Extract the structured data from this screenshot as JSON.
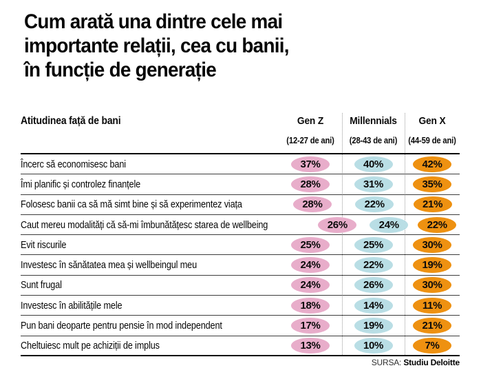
{
  "title": {
    "lines": [
      "Cum arată una dintre cele mai",
      "importante relații, cea cu banii,",
      "în funcție de generație"
    ]
  },
  "table": {
    "row_header": "Atitudinea față de bani",
    "columns": [
      {
        "label": "Gen Z",
        "sublabel": "(12-27 de ani)",
        "color": "#e8adca"
      },
      {
        "label": "Millennials",
        "sublabel": "(28-43 de ani)",
        "color": "#b9dee5"
      },
      {
        "label": "Gen X",
        "sublabel": "(44-59 de ani)",
        "color": "#ee9111"
      }
    ],
    "rows": [
      {
        "label": "Încerc să economisesc bani",
        "values": [
          "37%",
          "40%",
          "42%"
        ]
      },
      {
        "label": "Îmi planific și controlez finanțele",
        "values": [
          "28%",
          "31%",
          "35%"
        ]
      },
      {
        "label": "Folosesc banii ca să mă simt bine și să experimentez viața",
        "values": [
          "28%",
          "22%",
          "21%"
        ]
      },
      {
        "label": "Caut mereu modalități că să-mi îmbunătățesc starea de wellbeing",
        "values": [
          "26%",
          "24%",
          "22%"
        ]
      },
      {
        "label": "Evit riscurile",
        "values": [
          "25%",
          "25%",
          "30%"
        ]
      },
      {
        "label": "Investesc în sănătatea mea și wellbeingul meu",
        "values": [
          "24%",
          "22%",
          "19%"
        ]
      },
      {
        "label": "Sunt frugal",
        "values": [
          "24%",
          "26%",
          "30%"
        ]
      },
      {
        "label": "Investesc în abilitățile mele",
        "values": [
          "18%",
          "14%",
          "11%"
        ]
      },
      {
        "label": "Pun bani deoparte pentru pensie în mod independent",
        "values": [
          "17%",
          "19%",
          "21%"
        ]
      },
      {
        "label": "Cheltuiesc mult pe achiziții de implus",
        "values": [
          "13%",
          "10%",
          "7%"
        ]
      }
    ]
  },
  "source": {
    "prefix": "SURSA:",
    "name": "Studiu Deloitte"
  },
  "chart_data": {
    "type": "table",
    "title": "Cum arată una dintre cele mai importante relații, cea cu banii, în funcție de generație",
    "row_header": "Atitudinea față de bani",
    "categories": [
      "Încerc să economisesc bani",
      "Îmi planific și controlez finanțele",
      "Folosesc banii ca să mă simt bine și să experimentez viața",
      "Caut mereu modalități că să-mi îmbunătățesc starea de wellbeing",
      "Evit riscurile",
      "Investesc în sănătatea mea și wellbeingul meu",
      "Sunt frugal",
      "Investesc în abilitățile mele",
      "Pun bani deoparte pentru pensie în mod independent",
      "Cheltuiesc mult pe achiziții de implus"
    ],
    "series": [
      {
        "name": "Gen Z (12-27 de ani)",
        "color": "#e8adca",
        "values": [
          37,
          28,
          28,
          26,
          25,
          24,
          24,
          18,
          17,
          13
        ]
      },
      {
        "name": "Millennials (28-43 de ani)",
        "color": "#b9dee5",
        "values": [
          40,
          31,
          22,
          24,
          25,
          22,
          26,
          14,
          19,
          10
        ]
      },
      {
        "name": "Gen X (44-59 de ani)",
        "color": "#ee9111",
        "values": [
          42,
          35,
          21,
          22,
          30,
          19,
          30,
          11,
          21,
          7
        ]
      }
    ],
    "unit": "%",
    "source": "Studiu Deloitte"
  }
}
